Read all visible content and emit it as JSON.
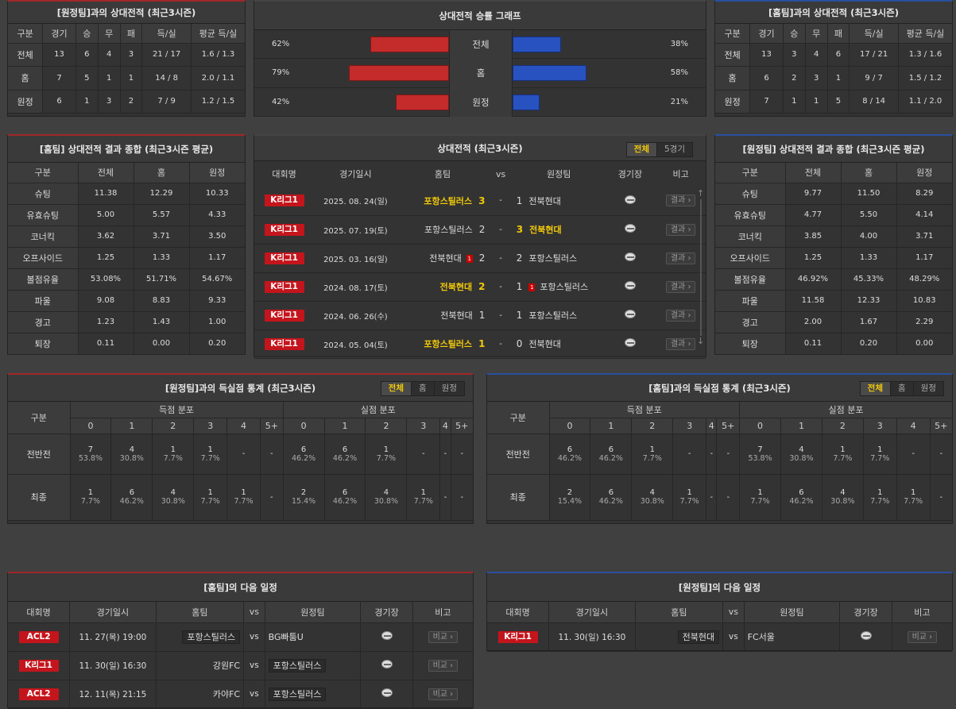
{
  "h2h_away": {
    "title": "[원정팀]과의 상대전적 (최근3시즌)",
    "headers": [
      "구분",
      "경기",
      "승",
      "무",
      "패",
      "득/실",
      "평균 득/실"
    ],
    "rows": [
      [
        "전체",
        "13",
        "6",
        "4",
        "3",
        "21 / 17",
        "1.6 / 1.3"
      ],
      [
        "홈",
        "7",
        "5",
        "1",
        "1",
        "14 / 8",
        "2.0 / 1.1"
      ],
      [
        "원정",
        "6",
        "1",
        "3",
        "2",
        "7 / 9",
        "1.2 / 1.5"
      ]
    ]
  },
  "win_graph": {
    "title": "상대전적 승률 그래프",
    "rows": [
      {
        "label": "전체",
        "home_pct": "62%",
        "away_pct": "38%",
        "home": 62,
        "away": 38
      },
      {
        "label": "홈",
        "home_pct": "79%",
        "away_pct": "58%",
        "home": 79,
        "away": 58
      },
      {
        "label": "원정",
        "home_pct": "42%",
        "away_pct": "21%",
        "home": 42,
        "away": 21
      }
    ]
  },
  "h2h_home": {
    "title": "[홈팀]과의 상대전적 (최근3시즌)",
    "headers": [
      "구분",
      "경기",
      "승",
      "무",
      "패",
      "득/실",
      "평균 득/실"
    ],
    "rows": [
      [
        "전체",
        "13",
        "3",
        "4",
        "6",
        "17 / 21",
        "1.3 / 1.6"
      ],
      [
        "홈",
        "6",
        "2",
        "3",
        "1",
        "9 / 7",
        "1.5 / 1.2"
      ],
      [
        "원정",
        "7",
        "1",
        "1",
        "5",
        "8 / 14",
        "1.1 / 2.0"
      ]
    ]
  },
  "home_summary": {
    "title": "[홈팀] 상대전적 결과 종합 (최근3시즌 평균)",
    "headers": [
      "구분",
      "전체",
      "홈",
      "원정"
    ],
    "rows": [
      [
        "슈팅",
        "11.38",
        "12.29",
        "10.33"
      ],
      [
        "유효슈팅",
        "5.00",
        "5.57",
        "4.33"
      ],
      [
        "코너킥",
        "3.62",
        "3.71",
        "3.50"
      ],
      [
        "오프사이드",
        "1.25",
        "1.33",
        "1.17"
      ],
      [
        "볼점유율",
        "53.08%",
        "51.71%",
        "54.67%"
      ],
      [
        "파울",
        "9.08",
        "8.83",
        "9.33"
      ],
      [
        "경고",
        "1.23",
        "1.43",
        "1.00"
      ],
      [
        "퇴장",
        "0.11",
        "0.00",
        "0.20"
      ]
    ]
  },
  "matches": {
    "title": "상대전적 (최근3시즌)",
    "tabs": [
      "전체",
      "5경기"
    ],
    "headers": [
      "대회명",
      "경기일시",
      "홈팀",
      "vs",
      "원정팀",
      "경기장",
      "비고"
    ],
    "result_label": "결과",
    "rows": [
      {
        "league": "K리그1",
        "date": "2025. 08. 24(일)",
        "home": "포항스틸러스",
        "hs": "3",
        "as": "1",
        "away": "전북현대",
        "win": "home",
        "hcard": "",
        "acard": ""
      },
      {
        "league": "K리그1",
        "date": "2025. 07. 19(토)",
        "home": "포항스틸러스",
        "hs": "2",
        "as": "3",
        "away": "전북현대",
        "win": "away",
        "hcard": "",
        "acard": ""
      },
      {
        "league": "K리그1",
        "date": "2025. 03. 16(일)",
        "home": "전북현대",
        "hs": "2",
        "as": "2",
        "away": "포항스틸러스",
        "win": "",
        "hcard": "1",
        "acard": ""
      },
      {
        "league": "K리그1",
        "date": "2024. 08. 17(토)",
        "home": "전북현대",
        "hs": "2",
        "as": "1",
        "away": "포항스틸러스",
        "win": "home",
        "hcard": "",
        "acard": "1"
      },
      {
        "league": "K리그1",
        "date": "2024. 06. 26(수)",
        "home": "전북현대",
        "hs": "1",
        "as": "1",
        "away": "포항스틸러스",
        "win": "",
        "hcard": "",
        "acard": ""
      },
      {
        "league": "K리그1",
        "date": "2024. 05. 04(토)",
        "home": "포항스틸러스",
        "hs": "1",
        "as": "0",
        "away": "전북현대",
        "win": "home",
        "hcard": "",
        "acard": ""
      }
    ]
  },
  "away_summary": {
    "title": "[원정팀] 상대전적 결과 종합 (최근3시즌 평균)",
    "headers": [
      "구분",
      "전체",
      "홈",
      "원정"
    ],
    "rows": [
      [
        "슈팅",
        "9.77",
        "11.50",
        "8.29"
      ],
      [
        "유효슈팅",
        "4.77",
        "5.50",
        "4.14"
      ],
      [
        "코너킥",
        "3.85",
        "4.00",
        "3.71"
      ],
      [
        "오프사이드",
        "1.25",
        "1.33",
        "1.17"
      ],
      [
        "볼점유율",
        "46.92%",
        "45.33%",
        "48.29%"
      ],
      [
        "파울",
        "11.58",
        "12.33",
        "10.83"
      ],
      [
        "경고",
        "2.00",
        "1.67",
        "2.29"
      ],
      [
        "퇴장",
        "0.11",
        "0.20",
        "0.00"
      ]
    ]
  },
  "goals_left": {
    "title": "[원정팀]과의 득실점 통계 (최근3시즌)",
    "tabs": [
      "전체",
      "홈",
      "원정"
    ],
    "group_label": "구분",
    "scored_label": "득점 분포",
    "conceded_label": "실점 분포",
    "cols": [
      "0",
      "1",
      "2",
      "3",
      "4",
      "5+"
    ],
    "rows": [
      {
        "label": "전반전",
        "cells": [
          [
            "7",
            "53.8%"
          ],
          [
            "4",
            "30.8%"
          ],
          [
            "1",
            "7.7%"
          ],
          [
            "1",
            "7.7%"
          ],
          [
            "-",
            ""
          ],
          [
            "-",
            ""
          ],
          [
            "6",
            "46.2%"
          ],
          [
            "6",
            "46.2%"
          ],
          [
            "1",
            "7.7%"
          ],
          [
            "-",
            ""
          ],
          [
            "-",
            ""
          ],
          [
            "-",
            ""
          ]
        ]
      },
      {
        "label": "최종",
        "cells": [
          [
            "1",
            "7.7%"
          ],
          [
            "6",
            "46.2%"
          ],
          [
            "4",
            "30.8%"
          ],
          [
            "1",
            "7.7%"
          ],
          [
            "1",
            "7.7%"
          ],
          [
            "-",
            ""
          ],
          [
            "2",
            "15.4%"
          ],
          [
            "6",
            "46.2%"
          ],
          [
            "4",
            "30.8%"
          ],
          [
            "1",
            "7.7%"
          ],
          [
            "-",
            ""
          ],
          [
            "-",
            ""
          ]
        ]
      }
    ]
  },
  "goals_right": {
    "title": "[홈팀]과의 득실점 통계 (최근3시즌)",
    "tabs": [
      "전체",
      "홈",
      "원정"
    ],
    "group_label": "구분",
    "scored_label": "득점 분포",
    "conceded_label": "실점 분포",
    "cols": [
      "0",
      "1",
      "2",
      "3",
      "4",
      "5+"
    ],
    "rows": [
      {
        "label": "전반전",
        "cells": [
          [
            "6",
            "46.2%"
          ],
          [
            "6",
            "46.2%"
          ],
          [
            "1",
            "7.7%"
          ],
          [
            "-",
            ""
          ],
          [
            "-",
            ""
          ],
          [
            "-",
            ""
          ],
          [
            "7",
            "53.8%"
          ],
          [
            "4",
            "30.8%"
          ],
          [
            "1",
            "7.7%"
          ],
          [
            "1",
            "7.7%"
          ],
          [
            "-",
            ""
          ],
          [
            "-",
            ""
          ]
        ]
      },
      {
        "label": "최종",
        "cells": [
          [
            "2",
            "15.4%"
          ],
          [
            "6",
            "46.2%"
          ],
          [
            "4",
            "30.8%"
          ],
          [
            "1",
            "7.7%"
          ],
          [
            "-",
            ""
          ],
          [
            "-",
            ""
          ],
          [
            "1",
            "7.7%"
          ],
          [
            "6",
            "46.2%"
          ],
          [
            "4",
            "30.8%"
          ],
          [
            "1",
            "7.7%"
          ],
          [
            "1",
            "7.7%"
          ],
          [
            "-",
            ""
          ]
        ]
      }
    ]
  },
  "next_home": {
    "title": "[홈팀]의 다음 일정",
    "headers": [
      "대회명",
      "경기일시",
      "홈팀",
      "vs",
      "원정팀",
      "경기장",
      "비고"
    ],
    "btn": "비교",
    "rows": [
      {
        "league": "ACL2",
        "date": "11. 27(목) 19:00",
        "home": "포항스틸러스",
        "away": "BG빠툼U",
        "box": "home"
      },
      {
        "league": "K리그1",
        "date": "11. 30(일) 16:30",
        "home": "강원FC",
        "away": "포항스틸러스",
        "box": "away"
      },
      {
        "league": "ACL2",
        "date": "12. 11(목) 21:15",
        "home": "카야FC",
        "away": "포항스틸러스",
        "box": "away"
      }
    ]
  },
  "next_away": {
    "title": "[원정팀]의 다음 일정",
    "headers": [
      "대회명",
      "경기일시",
      "홈팀",
      "vs",
      "원정팀",
      "경기장",
      "비고"
    ],
    "btn": "비교",
    "rows": [
      {
        "league": "K리그1",
        "date": "11. 30(일) 16:30",
        "home": "전북현대",
        "away": "FC서울",
        "box": "home"
      }
    ]
  }
}
